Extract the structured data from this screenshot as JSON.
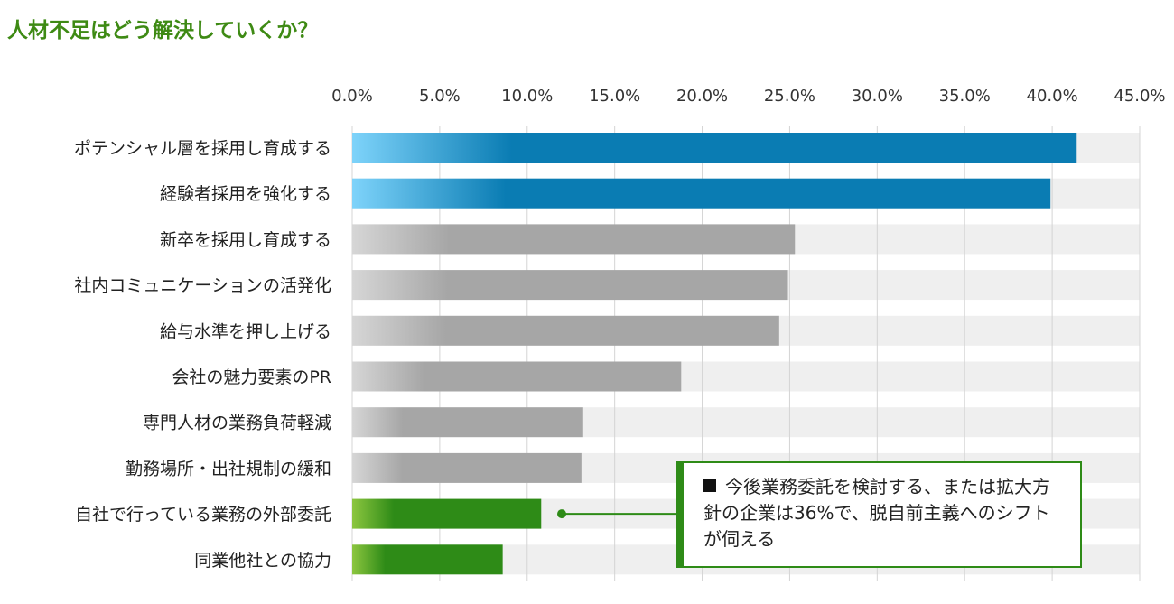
{
  "title": "人材不足はどう解決していくか？",
  "callout": {
    "bullet": "■",
    "text": "今後業務委託を検討する、または拡大方針の企業は36%で、脱自前主義へのシフトが伺える"
  },
  "colors": {
    "title": "#3e8a14",
    "blue": "#0a7cb3",
    "blue_light": "#7ed3fa",
    "gray": "#a6a6a6",
    "gray_light": "#d6d6d6",
    "green": "#2e8b17",
    "green_light": "#8cc63f",
    "track": "#efefef"
  },
  "chart_data": {
    "type": "bar",
    "orientation": "horizontal",
    "title": "人材不足はどう解決していくか？",
    "xlim": [
      0,
      45
    ],
    "x_ticks": [
      "0.0%",
      "5.0%",
      "10.0%",
      "15.0%",
      "20.0%",
      "25.0%",
      "30.0%",
      "35.0%",
      "40.0%",
      "45.0%"
    ],
    "x_axis_position": "top",
    "unit": "%",
    "grid": true,
    "categories": [
      "ポテンシャル層を採用し育成する",
      "経験者採用を強化する",
      "新卒を採用し育成する",
      "社内コミュニケーションの活発化",
      "給与水準を押し上げる",
      "会社の魅力要素のPR",
      "専門人材の業務負荷軽減",
      "勤務場所・出社規制の緩和",
      "自社で行っている業務の外部委託",
      "同業他社との協力"
    ],
    "values": [
      41.4,
      39.9,
      25.3,
      24.9,
      24.4,
      18.8,
      13.2,
      13.1,
      10.8,
      8.6
    ],
    "bar_colors": [
      "blue",
      "blue",
      "gray",
      "gray",
      "gray",
      "gray",
      "gray",
      "gray",
      "green",
      "green"
    ]
  }
}
